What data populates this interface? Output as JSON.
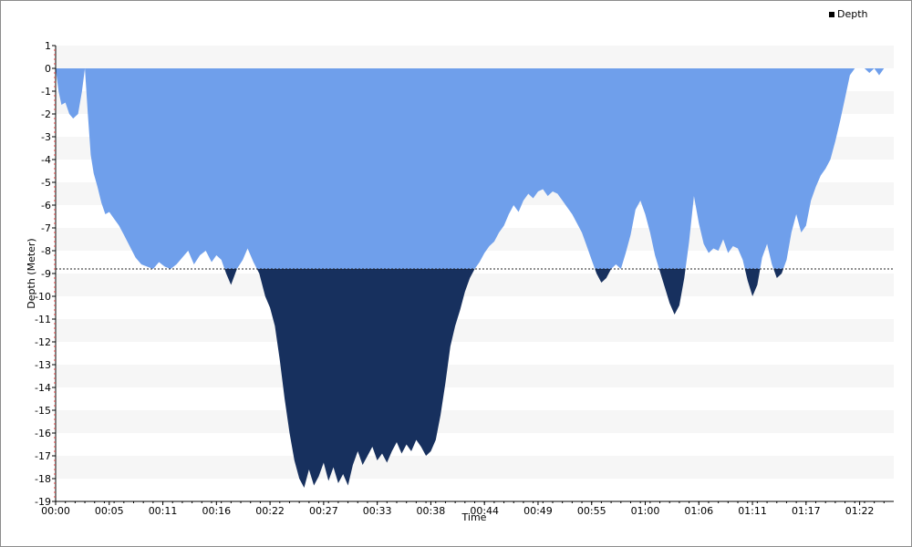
{
  "chart_data": {
    "type": "area",
    "title": "",
    "xlabel": "Time",
    "ylabel": "Depth (Meter)",
    "legend": {
      "position": "top-right",
      "entries": [
        "Depth"
      ]
    },
    "ylim": [
      -19,
      1
    ],
    "xlim_minutes": [
      0,
      86
    ],
    "grid": "alternating horizontal bands",
    "threshold_depth": -8.8,
    "y_ticks": [
      "1",
      "0",
      "-1",
      "-2",
      "-3",
      "-4",
      "-5",
      "-6",
      "-7",
      "-8",
      "-9",
      "-10",
      "-11",
      "-12",
      "-13",
      "-14",
      "-15",
      "-16",
      "-17",
      "-18",
      "-19"
    ],
    "x_ticks": [
      "00:00",
      "00:05",
      "00:11",
      "00:16",
      "00:22",
      "00:27",
      "00:33",
      "00:38",
      "00:44",
      "00:49",
      "00:55",
      "01:00",
      "01:06",
      "01:11",
      "01:17",
      "01:22"
    ],
    "x_tick_minutes": [
      0,
      5.5,
      11,
      16.5,
      22,
      27.5,
      33,
      38.5,
      44,
      49.5,
      55,
      60.5,
      66,
      71.5,
      77,
      82.5
    ],
    "series": [
      {
        "name": "Depth",
        "x_minutes": [
          0,
          0.3,
          0.6,
          1.0,
          1.4,
          1.8,
          2.3,
          2.7,
          3.0,
          3.3,
          3.6,
          3.9,
          4.3,
          4.7,
          5.1,
          5.5,
          6.0,
          6.5,
          7.0,
          7.6,
          8.2,
          8.8,
          9.4,
          10.0,
          10.6,
          11.2,
          11.8,
          12.4,
          13.0,
          13.6,
          14.2,
          14.8,
          15.4,
          16.0,
          16.5,
          17.0,
          17.5,
          18.0,
          18.6,
          19.2,
          19.7,
          20.3,
          20.9,
          21.5,
          22.0,
          22.5,
          23.0,
          23.5,
          24.0,
          24.5,
          25.0,
          25.5,
          26.0,
          26.5,
          27.0,
          27.5,
          28.0,
          28.5,
          29.0,
          29.5,
          30.0,
          30.5,
          31.0,
          31.5,
          32.0,
          32.5,
          33.0,
          33.5,
          34.0,
          34.5,
          35.0,
          35.5,
          36.0,
          36.5,
          37.0,
          37.5,
          38.0,
          38.5,
          39.0,
          39.5,
          40.0,
          40.5,
          41.0,
          41.5,
          42.0,
          42.5,
          43.0,
          43.5,
          44.0,
          44.5,
          45.0,
          45.5,
          46.0,
          46.5,
          47.0,
          47.5,
          48.0,
          48.5,
          49.0,
          49.5,
          50.0,
          50.5,
          51.0,
          51.5,
          52.0,
          52.5,
          53.0,
          53.5,
          54.0,
          54.5,
          55.0,
          55.5,
          56.0,
          56.5,
          57.0,
          57.5,
          58.0,
          58.5,
          59.0,
          59.5,
          60.0,
          60.5,
          61.0,
          61.5,
          62.0,
          62.5,
          63.0,
          63.5,
          64.0,
          64.5,
          65.0,
          65.5,
          66.0,
          66.5,
          67.0,
          67.5,
          68.0,
          68.5,
          69.0,
          69.5,
          70.0,
          70.5,
          71.0,
          71.5,
          72.0,
          72.5,
          73.0,
          73.5,
          74.0,
          74.5,
          75.0,
          75.5,
          76.0,
          76.5,
          77.0,
          77.5,
          78.0,
          78.5,
          79.0,
          79.5,
          80.0,
          80.5,
          81.0,
          81.5,
          82.0,
          82.5,
          83.0,
          83.5,
          84.0,
          84.5,
          85.0
        ],
        "depth_m": [
          0,
          -1.0,
          -1.6,
          -1.5,
          -2.0,
          -2.2,
          -2.0,
          -1.0,
          0,
          -2.0,
          -3.8,
          -4.6,
          -5.2,
          -5.9,
          -6.4,
          -6.3,
          -6.6,
          -6.9,
          -7.3,
          -7.8,
          -8.3,
          -8.6,
          -8.7,
          -8.8,
          -8.5,
          -8.7,
          -8.8,
          -8.6,
          -8.3,
          -8.0,
          -8.6,
          -8.2,
          -8.0,
          -8.5,
          -8.2,
          -8.4,
          -9.0,
          -9.5,
          -8.8,
          -8.4,
          -7.9,
          -8.5,
          -9.0,
          -10.0,
          -10.5,
          -11.3,
          -12.8,
          -14.5,
          -16.0,
          -17.2,
          -18.0,
          -18.4,
          -17.6,
          -18.3,
          -17.9,
          -17.3,
          -18.1,
          -17.5,
          -18.2,
          -17.8,
          -18.3,
          -17.4,
          -16.8,
          -17.4,
          -17.0,
          -16.6,
          -17.2,
          -16.9,
          -17.3,
          -16.8,
          -16.4,
          -16.9,
          -16.5,
          -16.8,
          -16.3,
          -16.6,
          -17.0,
          -16.8,
          -16.3,
          -15.2,
          -13.8,
          -12.2,
          -11.3,
          -10.6,
          -9.8,
          -9.2,
          -8.8,
          -8.5,
          -8.1,
          -7.8,
          -7.6,
          -7.2,
          -6.9,
          -6.4,
          -6.0,
          -6.3,
          -5.8,
          -5.5,
          -5.7,
          -5.4,
          -5.3,
          -5.6,
          -5.4,
          -5.5,
          -5.8,
          -6.1,
          -6.4,
          -6.8,
          -7.2,
          -7.8,
          -8.4,
          -9.0,
          -9.4,
          -9.2,
          -8.8,
          -8.6,
          -8.8,
          -8.1,
          -7.3,
          -6.2,
          -5.8,
          -6.4,
          -7.2,
          -8.2,
          -8.9,
          -9.6,
          -10.3,
          -10.8,
          -10.4,
          -9.2,
          -7.6,
          -5.6,
          -6.8,
          -7.7,
          -8.1,
          -7.9,
          -8.0,
          -7.5,
          -8.1,
          -7.8,
          -7.9,
          -8.4,
          -9.3,
          -10.0,
          -9.5,
          -8.3,
          -7.7,
          -8.6,
          -9.2,
          -9.0,
          -8.4,
          -7.2,
          -6.4,
          -7.2,
          -6.9,
          -5.8,
          -5.2,
          -4.7,
          -4.4,
          -4.0,
          -3.2,
          -2.3,
          -1.3,
          -0.3,
          0,
          0,
          0,
          -0.2,
          0,
          -0.3,
          0
        ]
      }
    ]
  }
}
